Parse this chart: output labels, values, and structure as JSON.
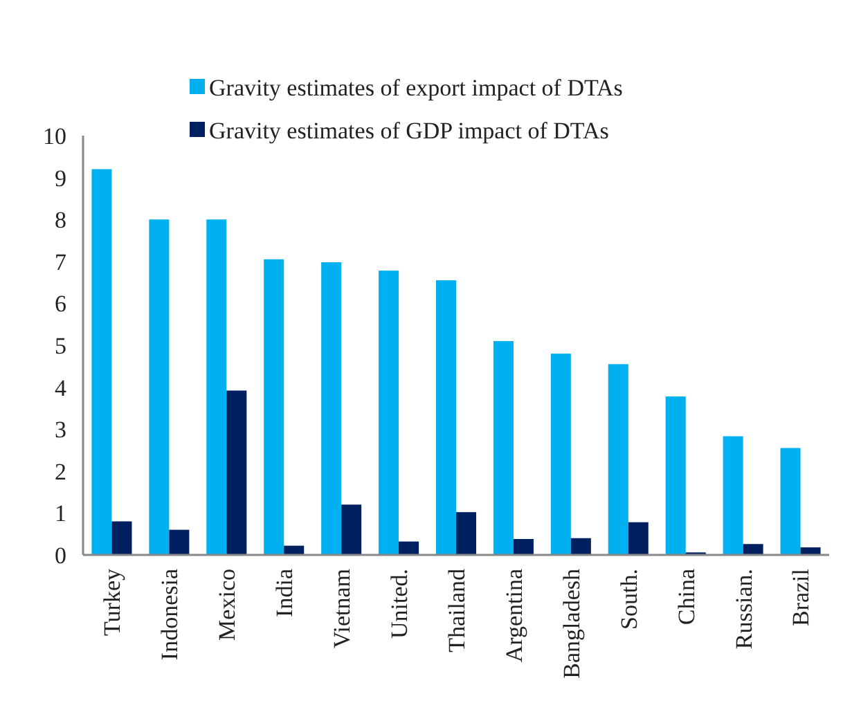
{
  "chart_data": {
    "type": "bar",
    "categories": [
      "Turkey",
      "Indonesia",
      "Mexico",
      "India",
      "Vietnam",
      "United.",
      "Thailand",
      "Argentina",
      "Bangladesh",
      "South.",
      "China",
      "Russian.",
      "Brazil"
    ],
    "series": [
      {
        "name": "Gravity estimates of export impact of DTAs",
        "color": "#00b0f0",
        "values": [
          9.2,
          8.0,
          8.0,
          7.05,
          6.98,
          6.78,
          6.55,
          5.1,
          4.8,
          4.55,
          3.78,
          2.83,
          2.55
        ]
      },
      {
        "name": "Gravity estimates of GDP impact of DTAs",
        "color": "#002060",
        "values": [
          0.8,
          0.6,
          3.92,
          0.22,
          1.2,
          0.32,
          1.02,
          0.38,
          0.4,
          0.78,
          0.06,
          0.26,
          0.18
        ]
      }
    ],
    "ylim": [
      0,
      10
    ],
    "yticks": [
      0,
      1,
      2,
      3,
      4,
      5,
      6,
      7,
      8,
      9,
      10
    ],
    "legend": "top",
    "grid": false
  }
}
